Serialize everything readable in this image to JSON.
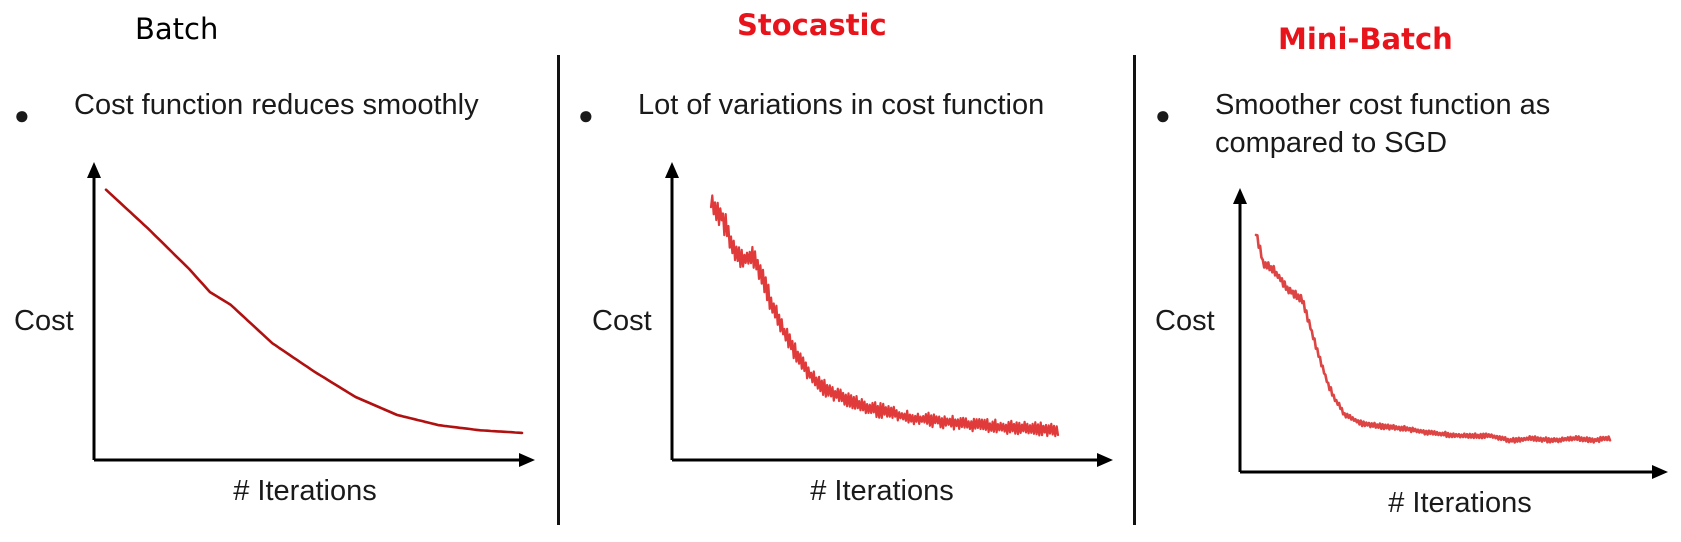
{
  "panels": [
    {
      "title": "Batch",
      "bullet": [
        "Cost function reduces smoothly"
      ],
      "ylabel": "Cost",
      "xlabel": "# Iterations"
    },
    {
      "title": "Stocastic",
      "bullet": [
        "Lot of variations in cost function"
      ],
      "ylabel": "Cost",
      "xlabel": "# Iterations"
    },
    {
      "title": "Mini-Batch",
      "bullet": [
        "Smoother cost function as",
        "compared to SGD"
      ],
      "ylabel": "Cost",
      "xlabel": "# Iterations"
    }
  ],
  "colors": {
    "curve_batch": "#b01010",
    "curve_sgd": "#e03a3a",
    "curve_minibatch": "#dd4444",
    "title_accent": "#e8141b"
  },
  "chart_data": [
    {
      "type": "line",
      "title": "",
      "xlabel": "# Iterations",
      "ylabel": "Cost",
      "xlim": [
        0,
        1
      ],
      "ylim": [
        0,
        1
      ],
      "grid": false,
      "series": [
        {
          "x": [
            0.0,
            0.1,
            0.2,
            0.25,
            0.3,
            0.4,
            0.5,
            0.6,
            0.7,
            0.8,
            0.9,
            1.0
          ],
          "y": [
            0.97,
            0.82,
            0.66,
            0.57,
            0.52,
            0.37,
            0.26,
            0.16,
            0.09,
            0.05,
            0.03,
            0.02
          ]
        }
      ]
    },
    {
      "type": "line",
      "title": "",
      "xlabel": "# Iterations",
      "ylabel": "Cost",
      "xlim": [
        0,
        1
      ],
      "ylim": [
        0,
        1
      ],
      "grid": false,
      "series": [
        {
          "x": [
            0.0,
            0.03,
            0.06,
            0.09,
            0.12,
            0.15,
            0.18,
            0.22,
            0.26,
            0.3,
            0.35,
            0.4,
            0.46,
            0.52,
            0.58,
            0.65,
            0.72,
            0.8,
            0.88,
            0.95,
            1.0
          ],
          "y": [
            0.95,
            0.9,
            0.78,
            0.72,
            0.73,
            0.64,
            0.52,
            0.4,
            0.3,
            0.23,
            0.18,
            0.15,
            0.12,
            0.1,
            0.08,
            0.07,
            0.06,
            0.05,
            0.04,
            0.035,
            0.03
          ]
        }
      ]
    },
    {
      "type": "line",
      "title": "",
      "xlabel": "# Iterations",
      "ylabel": "Cost",
      "xlim": [
        0,
        1
      ],
      "ylim": [
        0,
        1
      ],
      "grid": false,
      "series": [
        {
          "x": [
            0.0,
            0.02,
            0.05,
            0.09,
            0.13,
            0.17,
            0.2,
            0.22,
            0.25,
            0.3,
            0.35,
            0.42,
            0.5,
            0.58,
            0.66,
            0.72,
            0.78,
            0.84,
            0.9,
            0.95,
            1.0
          ],
          "y": [
            0.93,
            0.8,
            0.77,
            0.69,
            0.65,
            0.45,
            0.31,
            0.24,
            0.17,
            0.13,
            0.12,
            0.11,
            0.09,
            0.08,
            0.08,
            0.06,
            0.07,
            0.06,
            0.07,
            0.06,
            0.07
          ]
        }
      ]
    }
  ]
}
